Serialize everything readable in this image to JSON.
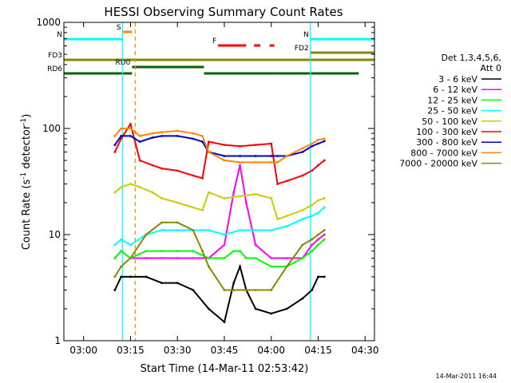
{
  "chart_data": {
    "type": "line",
    "title": "HESSI Observing Summary Count Rates",
    "xlabel": "Start Time (14-Mar-11 02:53:42)",
    "ylabel_main": "Count Rate (s",
    "ylabel_sup1": "-1",
    "ylabel_mid": " detector",
    "ylabel_sup2": "-1",
    "ylabel_end": ")",
    "yscale": "log",
    "ylim": [
      1,
      1000
    ],
    "xlim": [
      "02:53:42",
      "04:33:00"
    ],
    "x_ticks": [
      "03:00",
      "03:15",
      "03:30",
      "03:45",
      "04:00",
      "04:15",
      "04:30"
    ],
    "y_ticks": [
      {
        "label": "1",
        "value": 1
      },
      {
        "label": "10",
        "value": 10
      },
      {
        "label": "100",
        "value": 100
      },
      {
        "label": "1000",
        "value": 1000
      }
    ],
    "legend": {
      "placement": "right",
      "header": [
        "Det 1,3,4,5,6,",
        "Att 0"
      ],
      "entries": [
        {
          "label": "3 - 6 keV",
          "color": "#000000"
        },
        {
          "label": "6 - 12 keV",
          "color": "#ff00ff"
        },
        {
          "label": "12 - 25 keV",
          "color": "#00ff00"
        },
        {
          "label": "25 - 50 keV",
          "color": "#00ffff"
        },
        {
          "label": "50 - 100 keV",
          "color": "#cccc00"
        },
        {
          "label": "100 - 300 keV",
          "color": "#ff0000"
        },
        {
          "label": "300 - 800 keV",
          "color": "#0000cc"
        },
        {
          "label": "800 - 7000 keV",
          "color": "#ff8800"
        },
        {
          "label": "7000 - 20000 keV",
          "color": "#888800"
        }
      ]
    },
    "status_bars": [
      {
        "label": "S",
        "color": "#ff8800",
        "start": "03:12:30",
        "end": "03:15:30"
      },
      {
        "label": "N",
        "color": "#00ffff",
        "start": "02:53:42",
        "end": "03:12:30"
      },
      {
        "label": "N",
        "color": "#00ffff",
        "start": "04:12:30",
        "end": "04:33:00"
      },
      {
        "label": "F",
        "color": "#ff0000",
        "start": "03:43:00",
        "end": "03:52:00"
      },
      {
        "label": "",
        "color": "#ff0000",
        "start": "03:54:30",
        "end": "03:56:30"
      },
      {
        "label": "",
        "color": "#ff0000",
        "start": "03:59:30",
        "end": "04:01:00"
      },
      {
        "label": "FD2",
        "color": "#888800",
        "start": "04:12:30",
        "end": "04:33:00"
      },
      {
        "label": "FD3",
        "color": "#888800",
        "start": "02:53:42",
        "end": "04:33:00"
      },
      {
        "label": "RD0",
        "color": "#006600",
        "start": "03:15:30",
        "end": "03:38:30"
      },
      {
        "label": "RD6",
        "color": "#006600",
        "start": "02:53:42",
        "end": "03:15:30"
      },
      {
        "label": "",
        "color": "#006600",
        "start": "03:38:30",
        "end": "04:01:00"
      },
      {
        "label": "",
        "color": "#006600",
        "start": "04:01:00",
        "end": "04:28:00"
      }
    ],
    "vlines": [
      {
        "time": "03:12:30",
        "color": "#00ffff",
        "style": "solid"
      },
      {
        "time": "03:16:30",
        "color": "#ff8800",
        "style": "dashed"
      },
      {
        "time": "04:12:30",
        "color": "#00ffff",
        "style": "solid"
      },
      {
        "time": "04:33:00",
        "color": "#00ffff",
        "style": "dashed"
      }
    ],
    "series": [
      {
        "name": "3 - 6 keV",
        "color": "#000000",
        "x": [
          "03:10",
          "03:12",
          "03:15",
          "03:20",
          "03:25",
          "03:30",
          "03:35",
          "03:40",
          "03:45",
          "03:48",
          "03:50",
          "03:52",
          "03:55",
          "04:00",
          "04:05",
          "04:10",
          "04:13",
          "04:15",
          "04:17"
        ],
        "y": [
          3,
          4,
          4,
          4,
          3.5,
          3.5,
          3,
          2,
          1.5,
          3.5,
          5,
          3,
          2,
          1.8,
          2,
          2.5,
          3,
          4,
          4
        ]
      },
      {
        "name": "6 - 12 keV",
        "color": "#ff00ff",
        "x": [
          "03:10",
          "03:12",
          "03:15",
          "03:20",
          "03:25",
          "03:30",
          "03:35",
          "03:40",
          "03:45",
          "03:48",
          "03:50",
          "03:52",
          "03:55",
          "04:00",
          "04:05",
          "04:10",
          "04:13",
          "04:15",
          "04:17"
        ],
        "y": [
          6,
          7,
          6,
          6,
          6,
          6,
          6,
          6,
          8,
          25,
          45,
          20,
          8,
          6,
          6,
          6,
          8,
          9,
          10
        ]
      },
      {
        "name": "12 - 25 keV",
        "color": "#00ff00",
        "x": [
          "03:10",
          "03:12",
          "03:15",
          "03:20",
          "03:25",
          "03:30",
          "03:35",
          "03:40",
          "03:45",
          "03:48",
          "03:50",
          "03:52",
          "03:55",
          "04:00",
          "04:05",
          "04:10",
          "04:13",
          "04:15",
          "04:17"
        ],
        "y": [
          6,
          7,
          6,
          7,
          7,
          7,
          7,
          6,
          6,
          7,
          7,
          6,
          6,
          5,
          5,
          6,
          7,
          8,
          9
        ]
      },
      {
        "name": "25 - 50 keV",
        "color": "#00ffff",
        "x": [
          "03:10",
          "03:12",
          "03:15",
          "03:20",
          "03:25",
          "03:30",
          "03:35",
          "03:38",
          "03:40",
          "03:45",
          "03:50",
          "03:55",
          "04:00",
          "04:05",
          "04:10",
          "04:13",
          "04:15",
          "04:17"
        ],
        "y": [
          8,
          9,
          8,
          10,
          11,
          11,
          11,
          11,
          11,
          10,
          11,
          11,
          11,
          12,
          14,
          15,
          16,
          18
        ]
      },
      {
        "name": "50 - 100 keV",
        "color": "#cccc00",
        "x": [
          "03:10",
          "03:12",
          "03:15",
          "03:18",
          "03:22",
          "03:25",
          "03:30",
          "03:35",
          "03:38",
          "03:40",
          "03:45",
          "03:50",
          "03:55",
          "04:00",
          "04:02",
          "04:05",
          "04:10",
          "04:13",
          "04:15",
          "04:17"
        ],
        "y": [
          25,
          28,
          30,
          28,
          25,
          22,
          20,
          18,
          17,
          25,
          22,
          23,
          24,
          22,
          14,
          15,
          17,
          19,
          21,
          22
        ]
      },
      {
        "name": "100 - 300 keV",
        "color": "#ff0000",
        "x": [
          "03:10",
          "03:12",
          "03:15",
          "03:18",
          "03:22",
          "03:25",
          "03:30",
          "03:35",
          "03:38",
          "03:40",
          "03:45",
          "03:50",
          "03:55",
          "04:00",
          "04:02",
          "04:05",
          "04:10",
          "04:13",
          "04:15",
          "04:17"
        ],
        "y": [
          60,
          80,
          110,
          50,
          45,
          42,
          40,
          36,
          34,
          75,
          70,
          68,
          70,
          72,
          30,
          32,
          36,
          40,
          45,
          50
        ]
      },
      {
        "name": "300 - 800 keV",
        "color": "#0000cc",
        "x": [
          "03:10",
          "03:12",
          "03:15",
          "03:18",
          "03:22",
          "03:25",
          "03:30",
          "03:35",
          "03:38",
          "03:40",
          "03:45",
          "03:50",
          "03:55",
          "04:00",
          "04:02",
          "04:05",
          "04:10",
          "04:13",
          "04:15",
          "04:17"
        ],
        "y": [
          70,
          85,
          85,
          75,
          82,
          85,
          85,
          80,
          75,
          60,
          55,
          55,
          55,
          55,
          55,
          55,
          60,
          68,
          72,
          76
        ]
      },
      {
        "name": "800 - 7000 keV",
        "color": "#ff8800",
        "x": [
          "03:10",
          "03:12",
          "03:15",
          "03:18",
          "03:22",
          "03:25",
          "03:30",
          "03:35",
          "03:38",
          "03:40",
          "03:45",
          "03:50",
          "03:55",
          "04:00",
          "04:02",
          "04:05",
          "04:10",
          "04:13",
          "04:15",
          "04:17"
        ],
        "y": [
          85,
          100,
          100,
          85,
          90,
          92,
          95,
          90,
          85,
          60,
          50,
          48,
          48,
          48,
          48,
          55,
          65,
          72,
          78,
          80
        ]
      },
      {
        "name": "7000 - 20000 keV",
        "color": "#888800",
        "x": [
          "03:10",
          "03:12",
          "03:15",
          "03:20",
          "03:25",
          "03:30",
          "03:35",
          "03:38",
          "03:40",
          "03:45",
          "03:48",
          "03:52",
          "03:55",
          "04:00",
          "04:05",
          "04:10",
          "04:13",
          "04:15",
          "04:17"
        ],
        "y": [
          4,
          5,
          6,
          10,
          13,
          13,
          11,
          7,
          5,
          3,
          3,
          3,
          3,
          3,
          5,
          8,
          9,
          10,
          11
        ]
      }
    ]
  },
  "footer": {
    "timestamp": "14-Mar-2011 16:44"
  }
}
